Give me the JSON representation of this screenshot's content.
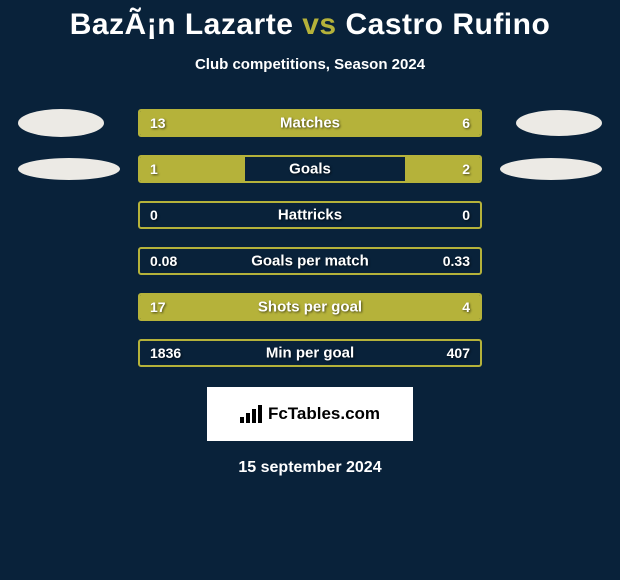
{
  "title": {
    "left": "BazÃ¡n Lazarte",
    "vs": "vs",
    "right": "Castro Rufino"
  },
  "subtitle": "Club competitions, Season 2024",
  "background_color": "#09223a",
  "accent_color": "#b5b23a",
  "text_color": "#ffffff",
  "avatar_color": "#eceae5",
  "rows": [
    {
      "label": "Matches",
      "left_val": "13",
      "right_val": "6",
      "left_pct": 66,
      "right_pct": 34,
      "show_avatar": true,
      "avatar_style": "circle",
      "avatar_width_l": 86,
      "avatar_height_l": 28,
      "avatar_width_r": 86,
      "avatar_height_r": 26
    },
    {
      "label": "Goals",
      "left_val": "1",
      "right_val": "2",
      "left_pct": 31,
      "right_pct": 22,
      "show_avatar": true,
      "avatar_style": "ellipse",
      "avatar_width_l": 102,
      "avatar_height_l": 22,
      "avatar_width_r": 102,
      "avatar_height_r": 22
    },
    {
      "label": "Hattricks",
      "left_val": "0",
      "right_val": "0",
      "left_pct": 0,
      "right_pct": 0,
      "show_avatar": false
    },
    {
      "label": "Goals per match",
      "left_val": "0.08",
      "right_val": "0.33",
      "left_pct": 0,
      "right_pct": 0,
      "show_avatar": false
    },
    {
      "label": "Shots per goal",
      "left_val": "17",
      "right_val": "4",
      "left_pct": 78,
      "right_pct": 22,
      "show_avatar": false
    },
    {
      "label": "Min per goal",
      "left_val": "1836",
      "right_val": "407",
      "left_pct": 0,
      "right_pct": 0,
      "show_avatar": false
    }
  ],
  "logo": {
    "text": "FcTables.com",
    "bar_heights": [
      6,
      10,
      14,
      18
    ]
  },
  "footer_date": "15 september 2024"
}
